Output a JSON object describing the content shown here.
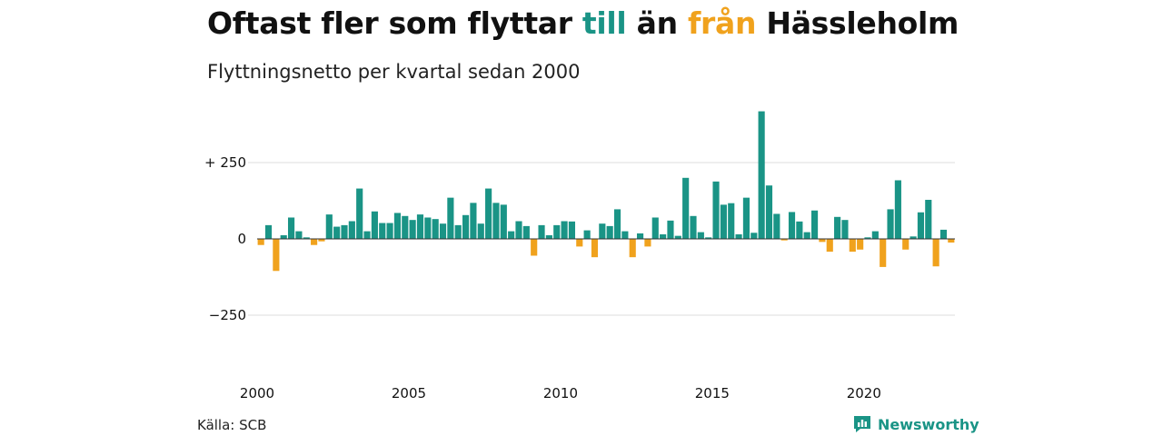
{
  "title": {
    "part1": "Oftast fler som flyttar ",
    "part2": "till",
    "part3": " än ",
    "part4": "från",
    "part5": " Hässleholm"
  },
  "subtitle": "Flyttningsnetto per kvartal sedan 2000",
  "source": "Källa: SCB",
  "brand": {
    "name": "Newsworthy",
    "icon": "newsworthy-logo-icon"
  },
  "colors": {
    "positive": "#1a9486",
    "negative": "#f0a21d",
    "grid": "#dddddd",
    "zero": "#333333"
  },
  "chart_data": {
    "type": "bar",
    "title": "Oftast fler som flyttar till än från Hässleholm",
    "subtitle": "Flyttningsnetto per kvartal sedan 2000",
    "xlabel": "",
    "ylabel": "",
    "ylim": [
      -300,
      420
    ],
    "yticks": [
      {
        "value": 250,
        "label": "+ 250"
      },
      {
        "value": 0,
        "label": "0"
      },
      {
        "value": -250,
        "label": "−250"
      }
    ],
    "xticks": [
      "2000",
      "2005",
      "2010",
      "2015",
      "2020"
    ],
    "grid": true,
    "x_start": "2000 Q1",
    "x_frequency": "quarterly",
    "values": [
      -20,
      45,
      -105,
      12,
      70,
      25,
      5,
      -20,
      -8,
      80,
      40,
      45,
      58,
      165,
      25,
      90,
      52,
      52,
      85,
      75,
      62,
      80,
      70,
      65,
      50,
      135,
      45,
      78,
      118,
      50,
      165,
      118,
      112,
      25,
      58,
      42,
      -55,
      45,
      12,
      45,
      58,
      57,
      -25,
      28,
      -60,
      50,
      42,
      97,
      25,
      -60,
      18,
      -25,
      70,
      15,
      60,
      10,
      200,
      75,
      22,
      5,
      188,
      112,
      117,
      15,
      135,
      20,
      418,
      175,
      82,
      -5,
      88,
      57,
      22,
      93,
      -10,
      -42,
      72,
      62,
      -42,
      -35,
      5,
      25,
      -92,
      97,
      192,
      -35,
      8,
      87,
      128,
      -90,
      30,
      -12
    ]
  }
}
